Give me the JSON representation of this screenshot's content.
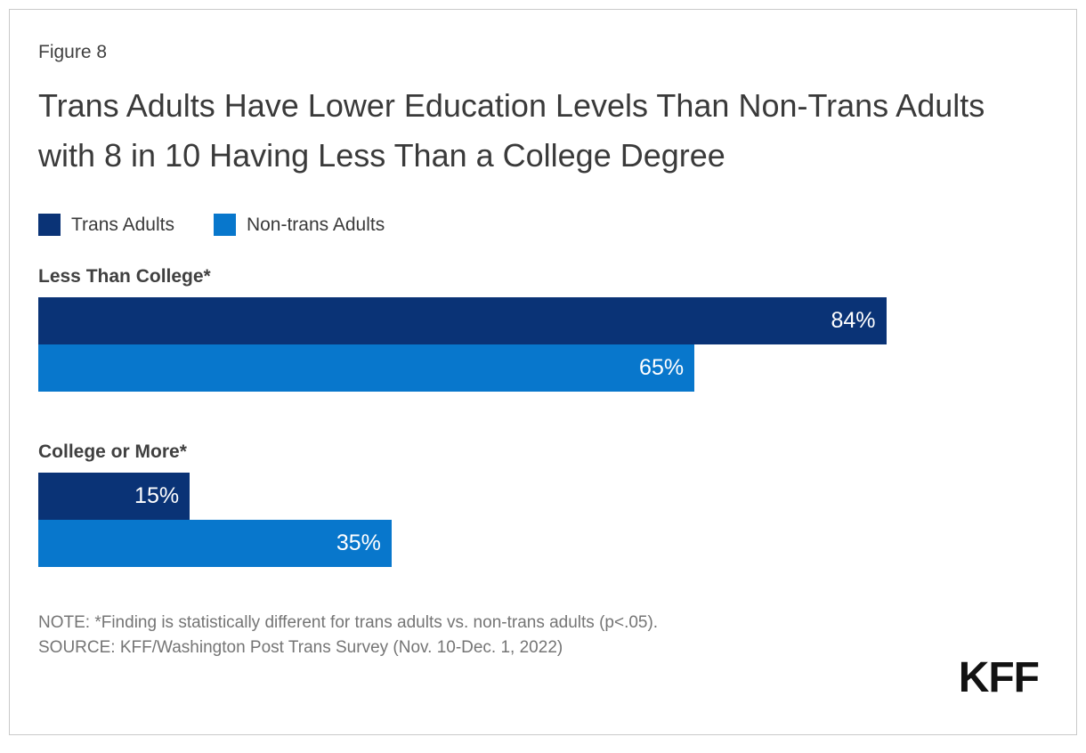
{
  "figure_label": "Figure 8",
  "title": "Trans Adults Have Lower Education Levels Than Non-Trans Adults with 8 in 10 Having Less Than a College Degree",
  "legend": [
    {
      "label": "Trans Adults",
      "color": "#0a3376"
    },
    {
      "label": "Non-trans Adults",
      "color": "#0877cc"
    }
  ],
  "chart_data": {
    "type": "bar",
    "orientation": "horizontal",
    "title": "Trans Adults Have Lower Education Levels Than Non-Trans Adults with 8 in 10 Having Less Than a College Degree",
    "categories": [
      "Less Than College*",
      "College or More*"
    ],
    "series": [
      {
        "name": "Trans Adults",
        "color": "#0a3376",
        "values": [
          84,
          15
        ]
      },
      {
        "name": "Non-trans Adults",
        "color": "#0877cc",
        "values": [
          65,
          35
        ]
      }
    ],
    "value_format": "percent",
    "xlim": [
      0,
      100
    ],
    "grid": false,
    "legend_position": "top",
    "value_labels_position": "inside-end",
    "value_label_color": "#ffffff"
  },
  "footer": {
    "note": "NOTE: *Finding is statistically different for trans adults vs. non-trans adults (p<.05).",
    "source": "SOURCE: KFF/Washington Post Trans Survey (Nov. 10-Dec. 1, 2022)",
    "logo": "KFF"
  }
}
